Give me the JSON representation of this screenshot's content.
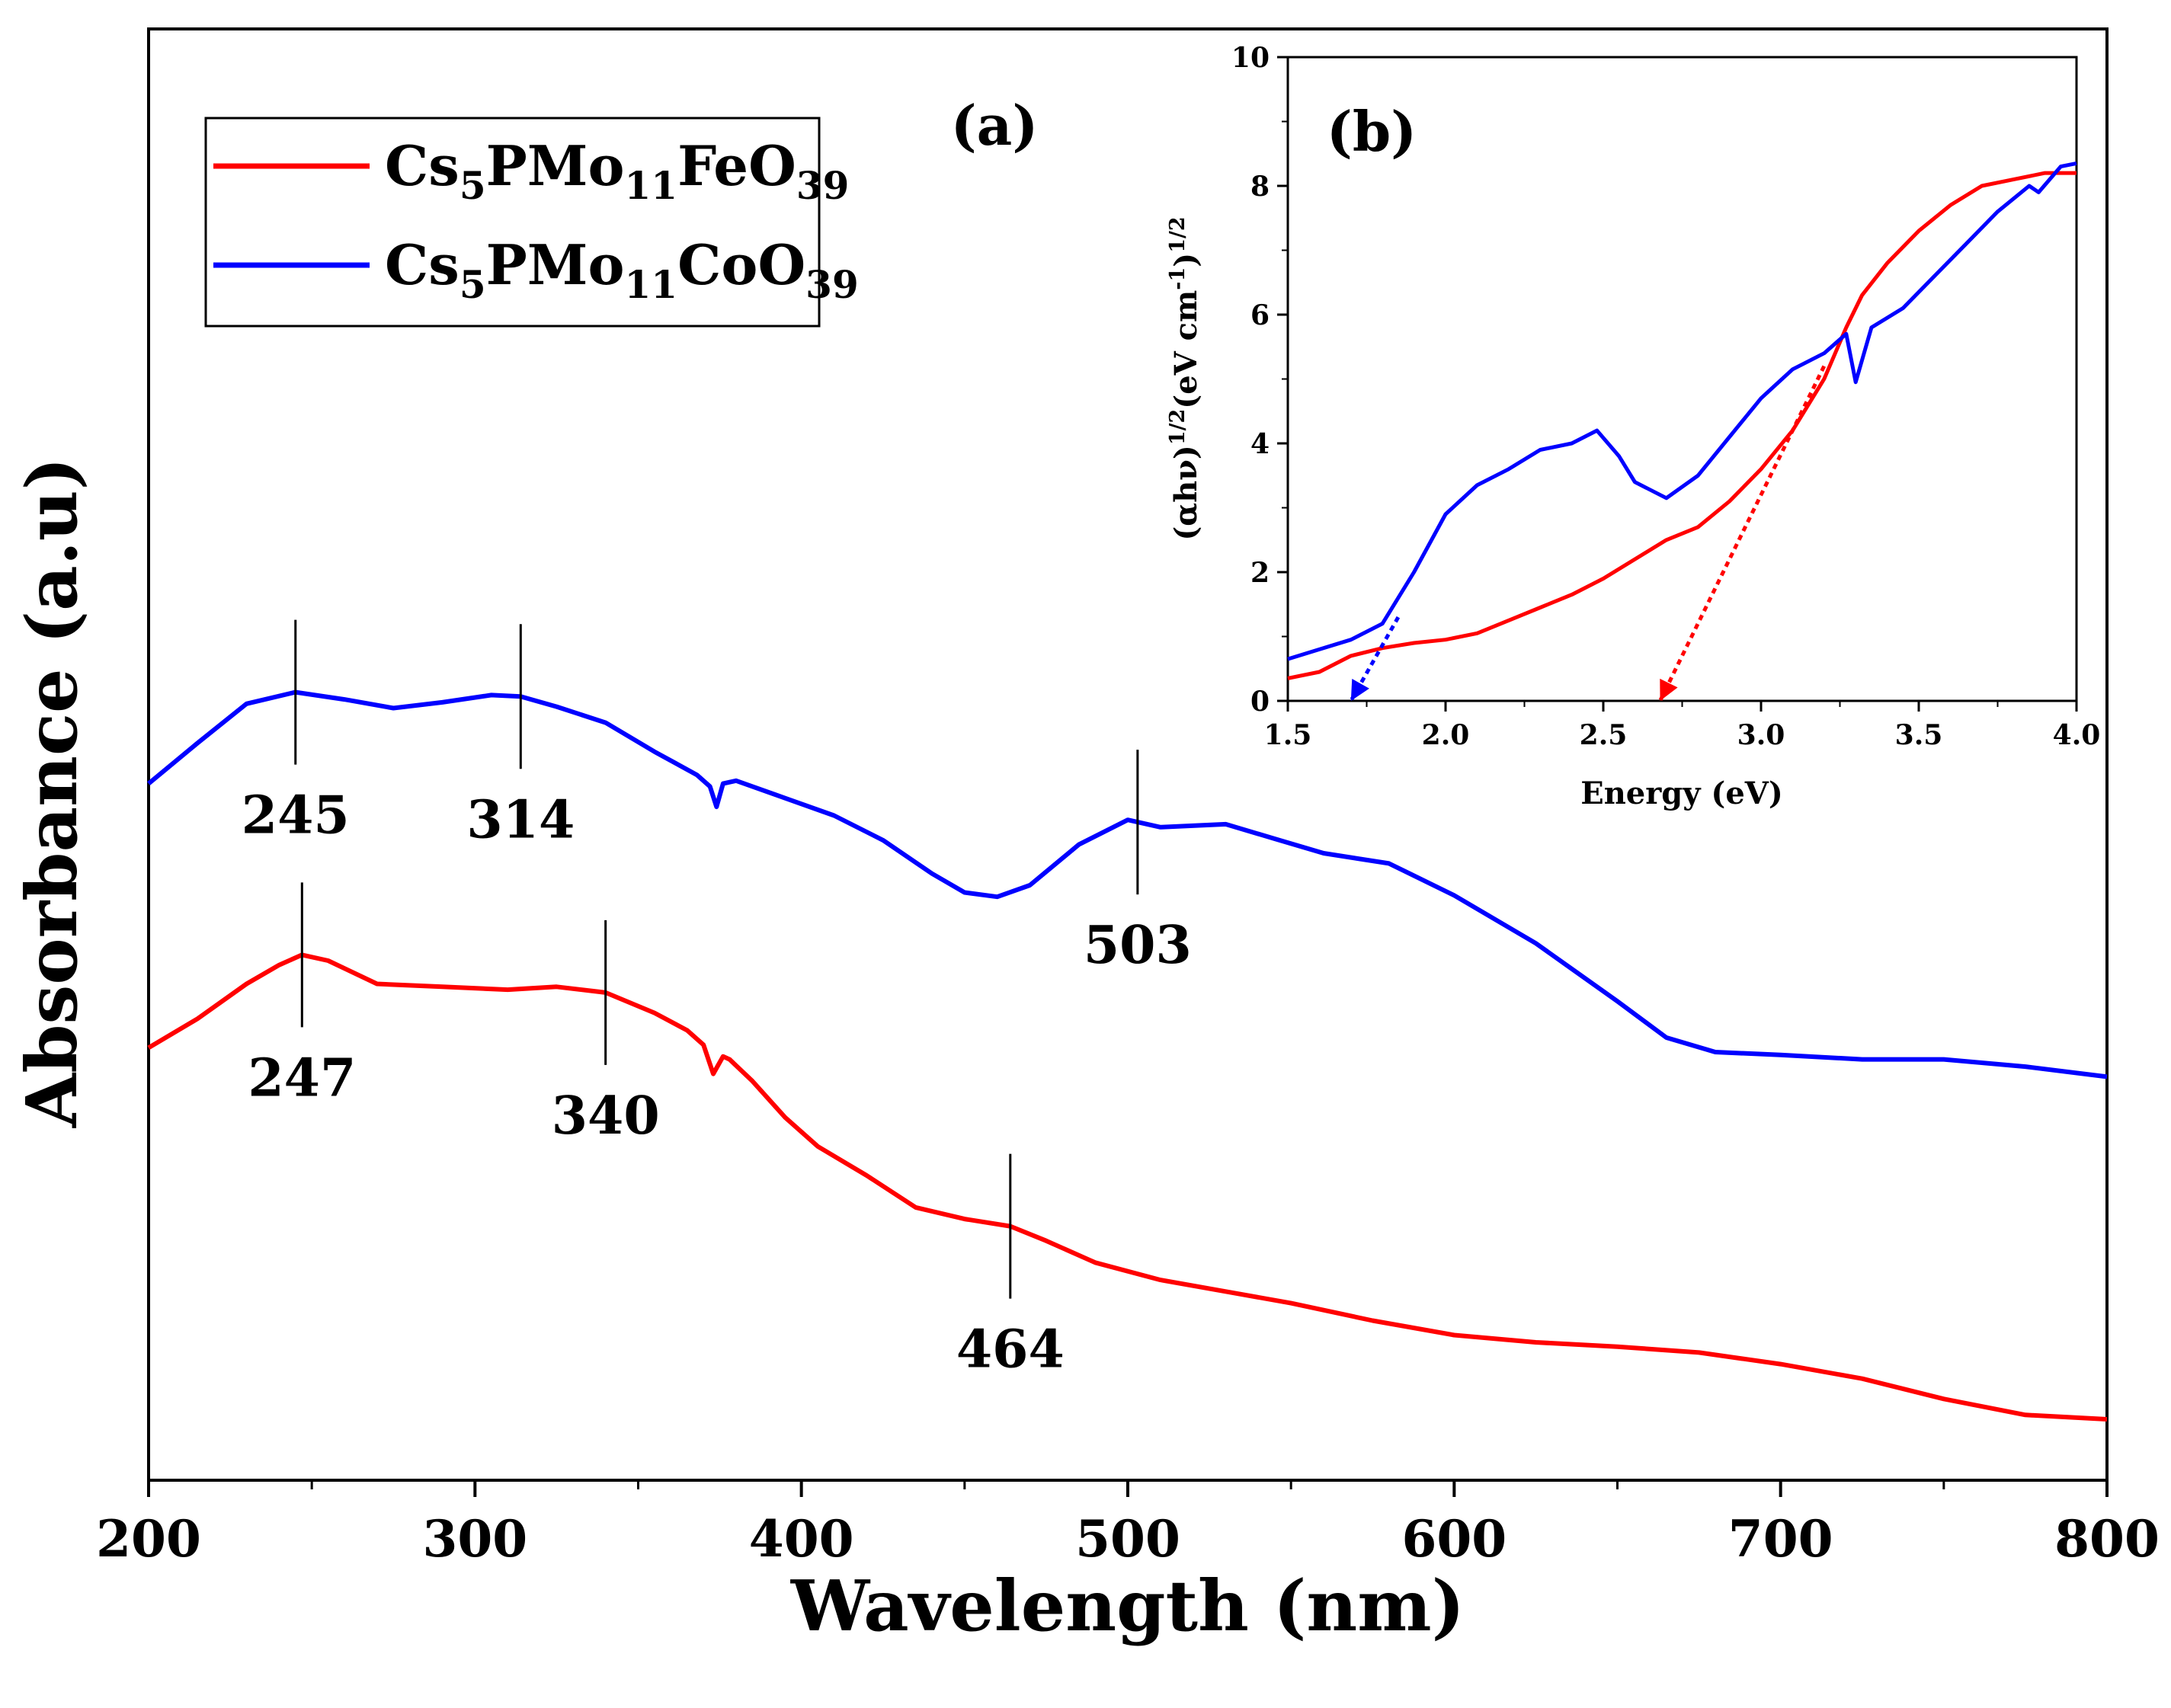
{
  "chart_data": [
    {
      "panel": "(a)",
      "type": "line",
      "xlabel": "Wavelength (nm)",
      "ylabel": "Absorbance (a.u)",
      "xlim": [
        200,
        800
      ],
      "ylim": [
        0,
        1.0
      ],
      "xticks": [
        200,
        300,
        400,
        500,
        600,
        700,
        800
      ],
      "ytick_labels": false,
      "grid": false,
      "legend": {
        "placement": "top-left",
        "boxed": true
      },
      "series": [
        {
          "name_main": "Cs",
          "name_sub1": "5",
          "name_mid": "PMo",
          "name_sub2": "11",
          "name_tail": "FeO",
          "name_sub3": "39",
          "color": "#ff0000",
          "points": [
            [
              200,
              0.298
            ],
            [
              215,
              0.318
            ],
            [
              230,
              0.342
            ],
            [
              240,
              0.355
            ],
            [
              247,
              0.362
            ],
            [
              255,
              0.358
            ],
            [
              270,
              0.342
            ],
            [
              290,
              0.34
            ],
            [
              310,
              0.338
            ],
            [
              325,
              0.34
            ],
            [
              340,
              0.336
            ],
            [
              355,
              0.322
            ],
            [
              365,
              0.31
            ],
            [
              370,
              0.3
            ],
            [
              373,
              0.28
            ],
            [
              376,
              0.292
            ],
            [
              378,
              0.29
            ],
            [
              385,
              0.275
            ],
            [
              395,
              0.25
            ],
            [
              405,
              0.23
            ],
            [
              420,
              0.21
            ],
            [
              435,
              0.188
            ],
            [
              450,
              0.18
            ],
            [
              464,
              0.175
            ],
            [
              475,
              0.165
            ],
            [
              490,
              0.15
            ],
            [
              510,
              0.138
            ],
            [
              530,
              0.13
            ],
            [
              550,
              0.122
            ],
            [
              575,
              0.11
            ],
            [
              600,
              0.1
            ],
            [
              625,
              0.095
            ],
            [
              650,
              0.092
            ],
            [
              675,
              0.088
            ],
            [
              700,
              0.08
            ],
            [
              725,
              0.07
            ],
            [
              750,
              0.056
            ],
            [
              775,
              0.045
            ],
            [
              800,
              0.042
            ]
          ]
        },
        {
          "name_main": "Cs",
          "name_sub1": "5",
          "name_mid": "PMo",
          "name_sub2": "11",
          "name_tail": "CoO",
          "name_sub3": "39",
          "color": "#0000ff",
          "points": [
            [
              200,
              0.48
            ],
            [
              215,
              0.508
            ],
            [
              230,
              0.535
            ],
            [
              245,
              0.543
            ],
            [
              260,
              0.538
            ],
            [
              275,
              0.532
            ],
            [
              290,
              0.536
            ],
            [
              305,
              0.541
            ],
            [
              314,
              0.54
            ],
            [
              325,
              0.533
            ],
            [
              340,
              0.522
            ],
            [
              355,
              0.502
            ],
            [
              368,
              0.486
            ],
            [
              372,
              0.478
            ],
            [
              374,
              0.464
            ],
            [
              376,
              0.48
            ],
            [
              380,
              0.482
            ],
            [
              395,
              0.47
            ],
            [
              410,
              0.458
            ],
            [
              425,
              0.441
            ],
            [
              440,
              0.418
            ],
            [
              450,
              0.405
            ],
            [
              460,
              0.402
            ],
            [
              470,
              0.41
            ],
            [
              485,
              0.438
            ],
            [
              500,
              0.455
            ],
            [
              510,
              0.45
            ],
            [
              530,
              0.452
            ],
            [
              545,
              0.442
            ],
            [
              560,
              0.432
            ],
            [
              580,
              0.425
            ],
            [
              600,
              0.403
            ],
            [
              625,
              0.37
            ],
            [
              650,
              0.33
            ],
            [
              665,
              0.305
            ],
            [
              680,
              0.295
            ],
            [
              700,
              0.293
            ],
            [
              725,
              0.29
            ],
            [
              750,
              0.29
            ],
            [
              775,
              0.285
            ],
            [
              800,
              0.278
            ]
          ]
        }
      ],
      "annotations": [
        {
          "text": "245",
          "x": 245,
          "series": 1
        },
        {
          "text": "314",
          "x": 314,
          "series": 1
        },
        {
          "text": "503",
          "x": 503,
          "series": 1
        },
        {
          "text": "247",
          "x": 247,
          "series": 0
        },
        {
          "text": "340",
          "x": 340,
          "series": 0
        },
        {
          "text": "464",
          "x": 464,
          "series": 0
        }
      ]
    },
    {
      "panel": "(b)",
      "type": "line",
      "xlabel": "Energy (eV)",
      "ylabel_main": "(αhν)",
      "ylabel_sup1": "1/2",
      "ylabel_mid": "(eV cm",
      "ylabel_sup2": "-1",
      "ylabel_close": ")",
      "ylabel_sup3": "1/2",
      "xlim": [
        1.5,
        4.0
      ],
      "ylim": [
        0,
        10
      ],
      "xticks": [
        1.5,
        2.0,
        2.5,
        3.0,
        3.5,
        4.0
      ],
      "yticks": [
        0,
        2,
        4,
        6,
        8,
        10
      ],
      "grid": false,
      "series": [
        {
          "color": "#ff0000",
          "points": [
            [
              1.5,
              0.35
            ],
            [
              1.6,
              0.45
            ],
            [
              1.7,
              0.7
            ],
            [
              1.8,
              0.82
            ],
            [
              1.9,
              0.9
            ],
            [
              2.0,
              0.95
            ],
            [
              2.1,
              1.05
            ],
            [
              2.2,
              1.25
            ],
            [
              2.3,
              1.45
            ],
            [
              2.4,
              1.65
            ],
            [
              2.5,
              1.9
            ],
            [
              2.6,
              2.2
            ],
            [
              2.7,
              2.5
            ],
            [
              2.8,
              2.7
            ],
            [
              2.9,
              3.1
            ],
            [
              3.0,
              3.6
            ],
            [
              3.1,
              4.2
            ],
            [
              3.2,
              5.0
            ],
            [
              3.27,
              5.8
            ],
            [
              3.32,
              6.3
            ],
            [
              3.4,
              6.8
            ],
            [
              3.5,
              7.3
            ],
            [
              3.6,
              7.7
            ],
            [
              3.7,
              8.0
            ],
            [
              3.8,
              8.1
            ],
            [
              3.9,
              8.2
            ],
            [
              4.0,
              8.2
            ]
          ]
        },
        {
          "color": "#0000ff",
          "points": [
            [
              1.5,
              0.65
            ],
            [
              1.6,
              0.8
            ],
            [
              1.7,
              0.95
            ],
            [
              1.8,
              1.2
            ],
            [
              1.9,
              2.0
            ],
            [
              2.0,
              2.9
            ],
            [
              2.1,
              3.35
            ],
            [
              2.2,
              3.6
            ],
            [
              2.3,
              3.9
            ],
            [
              2.4,
              4.0
            ],
            [
              2.48,
              4.2
            ],
            [
              2.55,
              3.8
            ],
            [
              2.6,
              3.4
            ],
            [
              2.7,
              3.15
            ],
            [
              2.8,
              3.5
            ],
            [
              2.9,
              4.1
            ],
            [
              3.0,
              4.7
            ],
            [
              3.1,
              5.15
            ],
            [
              3.2,
              5.4
            ],
            [
              3.27,
              5.7
            ],
            [
              3.3,
              4.95
            ],
            [
              3.35,
              5.8
            ],
            [
              3.45,
              6.1
            ],
            [
              3.55,
              6.6
            ],
            [
              3.65,
              7.1
            ],
            [
              3.75,
              7.6
            ],
            [
              3.85,
              8.0
            ],
            [
              3.88,
              7.9
            ],
            [
              3.95,
              8.3
            ],
            [
              4.0,
              8.35
            ]
          ]
        }
      ],
      "fit_lines": [
        {
          "color": "#ff0000",
          "from": [
            3.2,
            5.2
          ],
          "to": [
            2.68,
            0.0
          ]
        },
        {
          "color": "#0000ff",
          "from": [
            1.85,
            1.3
          ],
          "to": [
            1.7,
            0.0
          ]
        }
      ]
    }
  ]
}
